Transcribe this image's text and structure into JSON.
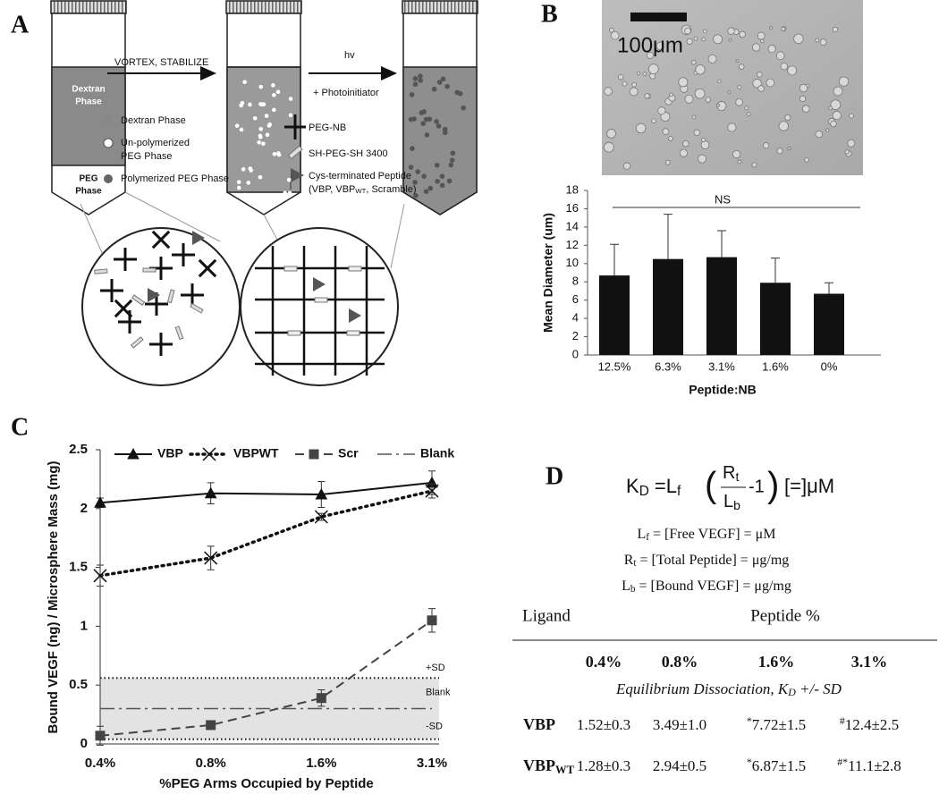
{
  "panels": [
    "A",
    "B",
    "C",
    "D"
  ],
  "diagram": {
    "steps": [
      "VORTEX, STABILIZE",
      "hv",
      "+ Photoinitiator"
    ],
    "tube_labels": [
      [
        "Dextran",
        "Phase"
      ],
      [
        "PEG",
        "Phase"
      ]
    ],
    "legend": [
      {
        "lines": [
          "Dextran Phase"
        ]
      },
      {
        "lines": [
          "Un-polymerized",
          "PEG Phase"
        ]
      },
      {
        "lines": [
          "Polymerized PEG Phase"
        ]
      },
      {
        "lines": [
          "PEG-NB"
        ]
      },
      {
        "lines": [
          "SH-PEG-SH 3400"
        ]
      },
      {
        "lines": [
          "Cys-terminated Peptide",
          [
            "(VBP, VBP",
            {
              "sub": "WT"
            },
            ", Scramble)"
          ]
        ]
      }
    ]
  },
  "micrograph": {
    "scale_bar": "100μm"
  },
  "chart_data": [
    {
      "type": "bar",
      "categories": [
        "12.5%",
        "6.3%",
        "3.1%",
        "1.6%",
        "0%"
      ],
      "values": [
        8.7,
        10.5,
        10.7,
        7.9,
        6.7
      ],
      "errors": [
        3.4,
        4.9,
        2.9,
        2.7,
        1.2
      ],
      "color": "#111111",
      "ylim": [
        0,
        18
      ],
      "yticks": [
        0,
        2,
        4,
        6,
        8,
        10,
        12,
        14,
        16,
        18
      ],
      "y_label": "Mean Diameter (um)",
      "x_label": "Peptide:NB",
      "annotation": "NS"
    },
    {
      "type": "line",
      "categories": [
        "0.4%",
        "0.8%",
        "1.6%",
        "3.1%"
      ],
      "ylim": [
        0,
        2.5
      ],
      "yticks": [
        0,
        0.5,
        1,
        1.5,
        2,
        2.5
      ],
      "y_label": "Bound VEGF (ng) / Microsphere Mass (mg)",
      "x_label": "%PEG Arms Occupied by Peptide",
      "series": [
        {
          "name": "VBP",
          "color": "#111111",
          "marker": "triangle",
          "dash": "solid",
          "values": [
            2.05,
            2.13,
            2.12,
            2.22
          ],
          "errors": [
            0.04,
            0.09,
            0.11,
            0.1
          ]
        },
        {
          "name": "VBPWT",
          "color": "#111111",
          "marker": "cross",
          "dash": "dotted",
          "values": [
            1.43,
            1.58,
            1.93,
            2.15
          ],
          "errors": [
            0.09,
            0.1,
            0.03,
            0.06
          ]
        },
        {
          "name": "Scr",
          "color": "#444444",
          "marker": "square",
          "dash": "dashed",
          "values": [
            0.07,
            0.16,
            0.39,
            1.05
          ],
          "errors": [
            0.08,
            0.02,
            0.07,
            0.1
          ]
        },
        {
          "name": "Blank",
          "color": "#555555",
          "marker": "none",
          "dash": "dashdot",
          "values": [
            0.3,
            0.3,
            0.3,
            0.3
          ]
        }
      ],
      "sd_band": {
        "lower": 0.04,
        "upper": 0.56,
        "color": "#e3e3e3"
      },
      "annotations": [
        "+SD",
        "Blank",
        "-SD"
      ]
    }
  ],
  "equation": {
    "lhs": [
      "K",
      {
        "sub": "D"
      },
      " =L",
      {
        "sub": "f"
      }
    ],
    "open": "(",
    "numerator": [
      "R",
      {
        "sub": "t"
      }
    ],
    "denominator": [
      "L",
      {
        "sub": "b"
      }
    ],
    "minus_one": "-1",
    "close": ")",
    "rhs": "[=]μM",
    "definitions": [
      [
        "L",
        {
          "sub": "f"
        },
        " = [Free VEGF] = μM"
      ],
      [
        "R",
        {
          "sub": "t"
        },
        " = [Total Peptide] = μg/mg"
      ],
      [
        "L",
        {
          "sub": "b"
        },
        " = [Bound VEGF] = μg/mg"
      ]
    ]
  },
  "table": {
    "header": [
      "Ligand",
      "Peptide %"
    ],
    "columns": [
      "0.4%",
      "0.8%",
      "1.6%",
      "3.1%"
    ],
    "caption": [
      "Equilibrium Dissociation, K",
      {
        "sub": "D"
      },
      " +/- SD"
    ],
    "rows": [
      {
        "label": "VBP",
        "cells": [
          "1.52±0.3",
          "3.49±1.0",
          [
            {
              "sup": "*"
            },
            "7.72±1.5"
          ],
          [
            {
              "sup": "#"
            },
            "12.4±2.5"
          ]
        ]
      },
      {
        "label": [
          "VBP",
          {
            "sub": "WT"
          }
        ],
        "cells": [
          "1.28±0.3",
          "2.94±0.5",
          [
            {
              "sup": "*"
            },
            "6.87±1.5"
          ],
          [
            {
              "sup": "#*"
            },
            "11.1±2.8"
          ]
        ]
      }
    ]
  }
}
